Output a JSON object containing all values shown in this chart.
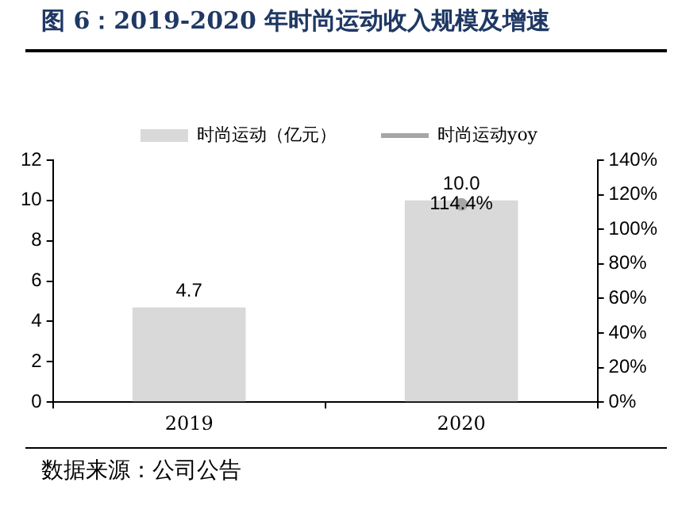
{
  "chart_data": {
    "type": "bar",
    "title": "图 6：2019-2020 年时尚运动收入规模及增速",
    "categories": [
      "2019",
      "2020"
    ],
    "series": [
      {
        "name": "时尚运动（亿元）",
        "color": "#d9d9d9",
        "values": [
          4.7,
          10.0
        ],
        "value_labels": [
          "4.7",
          "10.0"
        ]
      },
      {
        "name": "时尚运动yoy",
        "type": "line",
        "axis": "y2",
        "color": "#a6a6a6",
        "values": [
          null,
          114.4
        ],
        "value_labels": [
          null,
          "114.4%"
        ]
      }
    ],
    "ylim": [
      0,
      12
    ],
    "yticks": [
      0,
      2,
      4,
      6,
      8,
      10,
      12
    ],
    "y2lim": [
      0,
      140
    ],
    "y2ticks": [
      {
        "value": 0,
        "label": "0%"
      },
      {
        "value": 20,
        "label": "20%"
      },
      {
        "value": 40,
        "label": "40%"
      },
      {
        "value": 60,
        "label": "60%"
      },
      {
        "value": 80,
        "label": "80%"
      },
      {
        "value": 100,
        "label": "100%"
      },
      {
        "value": 120,
        "label": "120%"
      },
      {
        "value": 140,
        "label": "140%"
      }
    ],
    "legend": "top",
    "marker": "circle",
    "grid": false,
    "annotations": [
      "数据来源：公司公告"
    ]
  }
}
